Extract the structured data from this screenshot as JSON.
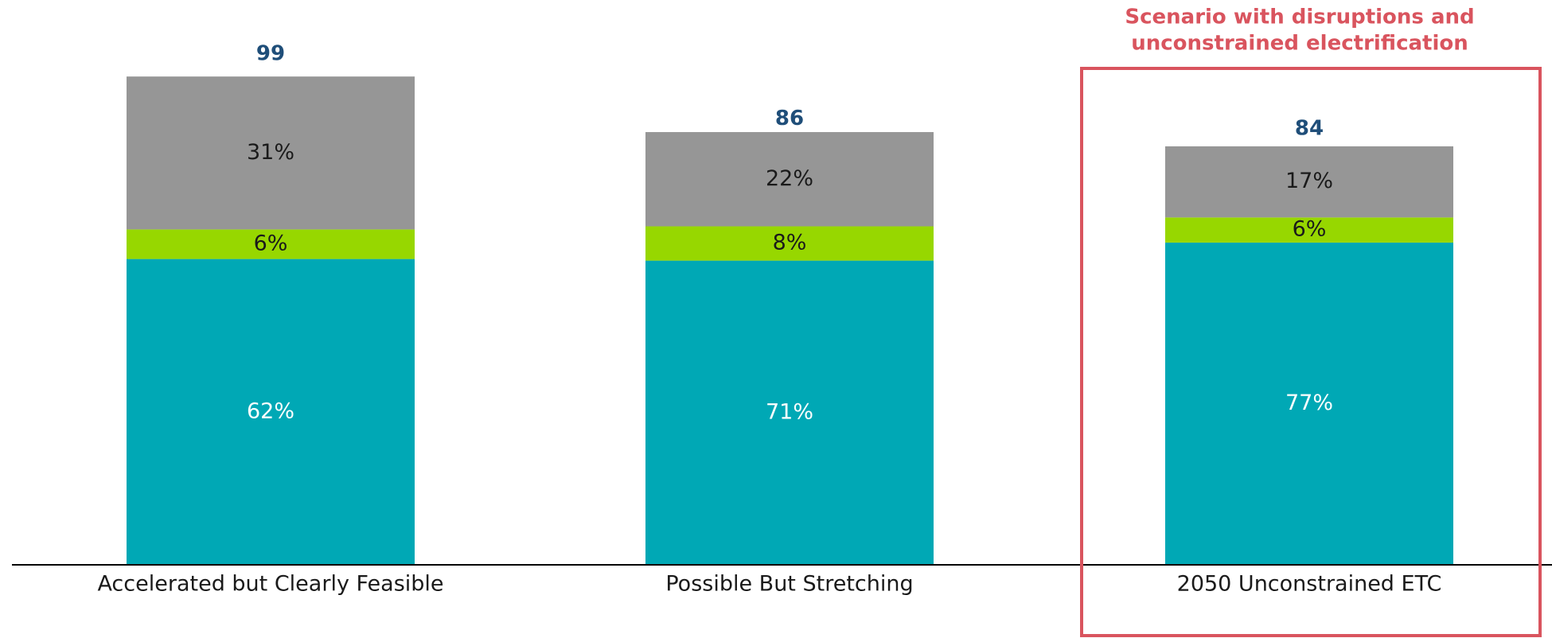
{
  "chart_data": {
    "type": "stacked-bar",
    "categories": [
      "Accelerated but Clearly Feasible",
      "Possible But Stretching",
      "2050 Unconstrained ETC"
    ],
    "series": [
      {
        "color": "#00a8b5",
        "label_color": "#ffffff",
        "values": [
          62,
          71,
          77
        ],
        "value_labels": [
          "62%",
          "71%",
          "77%"
        ]
      },
      {
        "color": "#97d700",
        "label_color": "#1a1a1a",
        "values": [
          6,
          8,
          6
        ],
        "value_labels": [
          "6%",
          "8%",
          "6%"
        ]
      },
      {
        "color": "#969696",
        "label_color": "#1a1a1a",
        "values": [
          31,
          22,
          17
        ],
        "value_labels": [
          "31%",
          "22%",
          "17%"
        ]
      }
    ],
    "totals": {
      "color": "#1f4e79",
      "values": [
        99,
        86,
        84
      ]
    },
    "annotation": {
      "color": "#d9545e",
      "lines": [
        "Scenario with disruptions and",
        "unconstrained electrification"
      ]
    }
  }
}
